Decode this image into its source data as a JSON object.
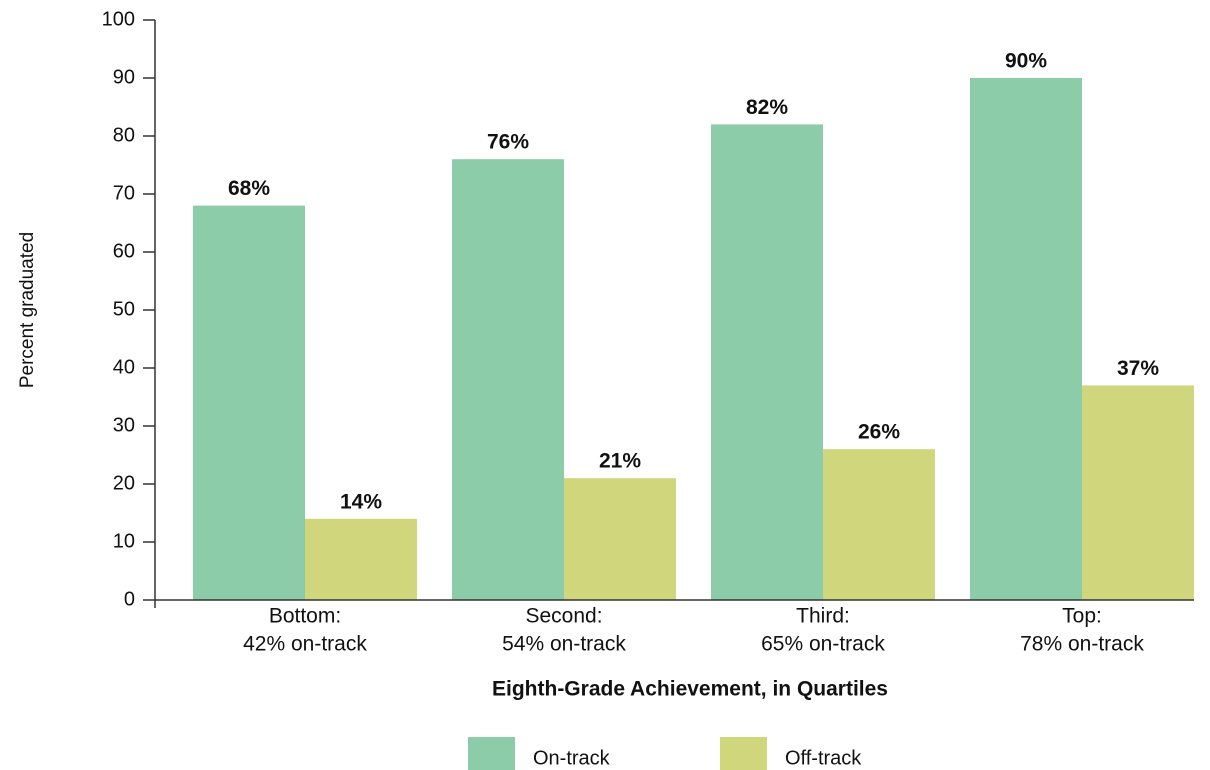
{
  "chart_data": {
    "type": "grouped_bar",
    "categories": [
      [
        "Bottom:",
        "42% on-track"
      ],
      [
        "Second:",
        "54% on-track"
      ],
      [
        "Third:",
        "65% on-track"
      ],
      [
        "Top:",
        "78% on-track"
      ]
    ],
    "series": [
      {
        "name": "On-track",
        "color": "#8ccca8",
        "values": [
          68,
          76,
          82,
          90
        ],
        "value_labels": [
          "68%",
          "76%",
          "82%",
          "90%"
        ]
      },
      {
        "name": "Off-track",
        "color": "#cfd67c",
        "values": [
          14,
          21,
          26,
          37
        ],
        "value_labels": [
          "14%",
          "21%",
          "26%",
          "37%"
        ]
      }
    ],
    "x_label": "Eighth-Grade Achievement, in Quartiles",
    "y_label": "Percent graduated",
    "ylim": [
      0,
      100
    ],
    "yticks": [
      0,
      10,
      20,
      30,
      40,
      50,
      60,
      70,
      80,
      90,
      100
    ],
    "legend": "bottom"
  }
}
